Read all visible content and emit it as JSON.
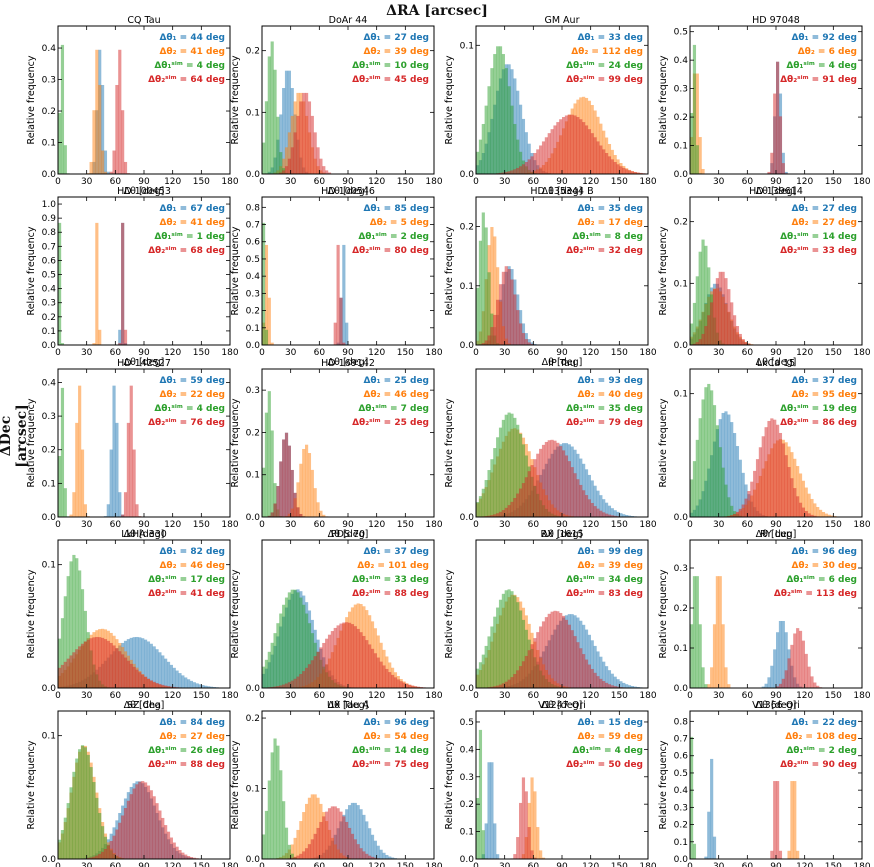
{
  "title": "ΔRA [arcsec]",
  "ylabel_side": "ΔDec [arcsec]",
  "chart_data": [
    {
      "type": "histogram",
      "title": "CQ Tau",
      "xlabel": "Δθ [deg]",
      "ylabel": "Relative frequency",
      "xlim": [
        0,
        180
      ],
      "ylim": [
        0,
        0.47
      ],
      "yticks": [
        0.0,
        0.1,
        0.2,
        0.3,
        0.4
      ],
      "series": [
        {
          "name": "Δθ₁ = 44 deg",
          "value": 44,
          "sigma": 3,
          "color": "#1f77b4"
        },
        {
          "name": "Δθ₂ = 41 deg",
          "value": 41,
          "sigma": 3,
          "color": "#ff7f0e"
        },
        {
          "name": "Δθ₁ˢⁱᵐ = 4 deg",
          "value": 4,
          "sigma": 2,
          "color": "#2ca02c"
        },
        {
          "name": "Δθ₂ˢⁱᵐ = 64 deg",
          "value": 64,
          "sigma": 3,
          "color": "#d62728"
        }
      ]
    },
    {
      "type": "histogram",
      "title": "DoAr 44",
      "xlabel": "Δθ [deg]",
      "ylabel": "Relative frequency",
      "xlim": [
        0,
        180
      ],
      "ylim": [
        0,
        0.24
      ],
      "yticks": [
        0.0,
        0.1,
        0.2
      ],
      "series": [
        {
          "name": "Δθ₁ = 27 deg",
          "value": 27,
          "sigma": 7,
          "color": "#1f77b4"
        },
        {
          "name": "Δθ₂ = 39 deg",
          "value": 39,
          "sigma": 9,
          "color": "#ff7f0e"
        },
        {
          "name": "Δθ₁ˢⁱᵐ = 10 deg",
          "value": 10,
          "sigma": 5,
          "color": "#2ca02c"
        },
        {
          "name": "Δθ₂ˢⁱᵐ = 45 deg",
          "value": 45,
          "sigma": 9,
          "color": "#d62728"
        }
      ]
    },
    {
      "type": "histogram",
      "title": "GM Aur",
      "xlabel": "Δθ [deg]",
      "ylabel": "Relative frequency",
      "xlim": [
        0,
        180
      ],
      "ylim": [
        0,
        0.115
      ],
      "yticks": [
        0.0,
        0.1
      ],
      "series": [
        {
          "name": "Δθ₁ = 33 deg",
          "value": 33,
          "sigma": 14,
          "color": "#1f77b4"
        },
        {
          "name": "Δθ₂ = 112 deg",
          "value": 112,
          "sigma": 20,
          "color": "#ff7f0e"
        },
        {
          "name": "Δθ₁ˢⁱᵐ = 24 deg",
          "value": 24,
          "sigma": 12,
          "color": "#2ca02c"
        },
        {
          "name": "Δθ₂ˢⁱᵐ = 99 deg",
          "value": 99,
          "sigma": 26,
          "color": "#d62728"
        }
      ]
    },
    {
      "type": "histogram",
      "title": "HD 97048",
      "xlabel": "Δθ [deg]",
      "ylabel": "Relative frequency",
      "xlim": [
        0,
        180
      ],
      "ylim": [
        0,
        0.52
      ],
      "yticks": [
        0.0,
        0.1,
        0.2,
        0.3,
        0.4,
        0.5
      ],
      "series": [
        {
          "name": "Δθ₁ = 92 deg",
          "value": 92,
          "sigma": 3,
          "color": "#1f77b4"
        },
        {
          "name": "Δθ₂ = 6 deg",
          "value": 6,
          "sigma": 3,
          "color": "#ff7f0e"
        },
        {
          "name": "Δθ₁ˢⁱᵐ = 4 deg",
          "value": 4,
          "sigma": 2,
          "color": "#2ca02c"
        },
        {
          "name": "Δθ₂ˢⁱᵐ = 91 deg",
          "value": 91,
          "sigma": 3,
          "color": "#d62728"
        }
      ]
    },
    {
      "type": "histogram",
      "title": "HD 100453",
      "xlabel": "Δθ [deg]",
      "ylabel": "Relative frequency",
      "xlim": [
        0,
        180
      ],
      "ylim": [
        0,
        1.05
      ],
      "yticks": [
        0.0,
        0.1,
        0.2,
        0.3,
        0.4,
        0.5,
        0.6,
        0.7,
        0.8,
        0.9,
        1.0
      ],
      "series": [
        {
          "name": "Δθ₁ = 67 deg",
          "value": 67,
          "sigma": 1,
          "color": "#1f77b4"
        },
        {
          "name": "Δθ₂ = 41 deg",
          "value": 41,
          "sigma": 1,
          "color": "#ff7f0e"
        },
        {
          "name": "Δθ₁ˢⁱᵐ = 1 deg",
          "value": 1,
          "sigma": 1,
          "color": "#2ca02c"
        },
        {
          "name": "Δθ₂ˢⁱᵐ = 68 deg",
          "value": 68,
          "sigma": 1,
          "color": "#d62728"
        }
      ]
    },
    {
      "type": "histogram",
      "title": "HD 100546",
      "xlabel": "Δθ [deg]",
      "ylabel": "Relative frequency",
      "xlim": [
        0,
        180
      ],
      "ylim": [
        0,
        0.86
      ],
      "yticks": [
        0.0,
        0.1,
        0.2,
        0.3,
        0.4,
        0.5,
        0.6,
        0.7,
        0.8
      ],
      "series": [
        {
          "name": "Δθ₁ = 85 deg",
          "value": 85,
          "sigma": 2,
          "color": "#1f77b4"
        },
        {
          "name": "Δθ₂ = 5 deg",
          "value": 5,
          "sigma": 2,
          "color": "#ff7f0e"
        },
        {
          "name": "Δθ₁ˢⁱᵐ = 2 deg",
          "value": 2,
          "sigma": 1,
          "color": "#2ca02c"
        },
        {
          "name": "Δθ₂ˢⁱᵐ = 80 deg",
          "value": 80,
          "sigma": 2,
          "color": "#d62728"
        }
      ]
    },
    {
      "type": "histogram",
      "title": "HD 135344 B",
      "xlabel": "Δθ [deg]",
      "ylabel": "Relative frequency",
      "xlim": [
        0,
        180
      ],
      "ylim": [
        0,
        0.25
      ],
      "yticks": [
        0.0,
        0.1,
        0.2
      ],
      "series": [
        {
          "name": "Δθ₁ = 35 deg",
          "value": 35,
          "sigma": 9,
          "color": "#1f77b4"
        },
        {
          "name": "Δθ₂ = 17 deg",
          "value": 17,
          "sigma": 6,
          "color": "#ff7f0e"
        },
        {
          "name": "Δθ₁ˢⁱᵐ = 8 deg",
          "value": 8,
          "sigma": 5,
          "color": "#2ca02c"
        },
        {
          "name": "Δθ₂ˢⁱᵐ = 32 deg",
          "value": 32,
          "sigma": 9,
          "color": "#d62728"
        }
      ]
    },
    {
      "type": "histogram",
      "title": "HD 139614",
      "xlabel": "Δθ [deg]",
      "ylabel": "Relative frequency",
      "xlim": [
        0,
        180
      ],
      "ylim": [
        0,
        0.24
      ],
      "yticks": [
        0.0,
        0.1,
        0.2
      ],
      "series": [
        {
          "name": "Δθ₁ = 27 deg",
          "value": 27,
          "sigma": 12,
          "color": "#1f77b4"
        },
        {
          "name": "Δθ₂ = 27 deg",
          "value": 27,
          "sigma": 13,
          "color": "#ff7f0e"
        },
        {
          "name": "Δθ₁ˢⁱᵐ = 14 deg",
          "value": 14,
          "sigma": 7,
          "color": "#2ca02c"
        },
        {
          "name": "Δθ₂ˢⁱᵐ = 33 deg",
          "value": 33,
          "sigma": 10,
          "color": "#d62728"
        }
      ]
    },
    {
      "type": "histogram",
      "title": "HD 142527",
      "xlabel": "Δθ [deg]",
      "ylabel": "Relative frequency",
      "xlim": [
        0,
        180
      ],
      "ylim": [
        0,
        0.44
      ],
      "yticks": [
        0.0,
        0.1,
        0.2,
        0.3,
        0.4
      ],
      "series": [
        {
          "name": "Δθ₁ = 59 deg",
          "value": 59,
          "sigma": 3,
          "color": "#1f77b4"
        },
        {
          "name": "Δθ₂ = 22 deg",
          "value": 22,
          "sigma": 3,
          "color": "#ff7f0e"
        },
        {
          "name": "Δθ₁ˢⁱᵐ = 4 deg",
          "value": 4,
          "sigma": 2,
          "color": "#2ca02c"
        },
        {
          "name": "Δθ₂ˢⁱᵐ = 76 deg",
          "value": 76,
          "sigma": 3,
          "color": "#d62728"
        }
      ]
    },
    {
      "type": "histogram",
      "title": "HD 169142",
      "xlabel": "Δθ [deg]",
      "ylabel": "Relative frequency",
      "xlim": [
        0,
        180
      ],
      "ylim": [
        0,
        0.35
      ],
      "yticks": [
        0.0,
        0.1,
        0.2,
        0.3
      ],
      "series": [
        {
          "name": "Δθ₁ = 25 deg",
          "value": 25,
          "sigma": 6,
          "color": "#1f77b4"
        },
        {
          "name": "Δθ₂ = 46 deg",
          "value": 46,
          "sigma": 7,
          "color": "#ff7f0e"
        },
        {
          "name": "Δθ₁ˢⁱᵐ = 7 deg",
          "value": 7,
          "sigma": 4,
          "color": "#2ca02c"
        },
        {
          "name": "Δθ₂ˢⁱᵐ = 25 deg",
          "value": 25,
          "sigma": 6,
          "color": "#d62728"
        }
      ]
    },
    {
      "type": "histogram",
      "title": "IP Tau",
      "xlabel": "Δθ [deg]",
      "ylabel": "Relative frequency",
      "xlim": [
        0,
        180
      ],
      "ylim": [
        0,
        0.1
      ],
      "yticks": [
        0.0
      ],
      "series": [
        {
          "name": "Δθ₁ = 93 deg",
          "value": 93,
          "sigma": 24,
          "color": "#1f77b4"
        },
        {
          "name": "Δθ₂ = 40 deg",
          "value": 40,
          "sigma": 20,
          "color": "#ff7f0e"
        },
        {
          "name": "Δθ₁ˢⁱᵐ = 35 deg",
          "value": 35,
          "sigma": 17,
          "color": "#2ca02c"
        },
        {
          "name": "Δθ₂ˢⁱᵐ = 79 deg",
          "value": 79,
          "sigma": 23,
          "color": "#d62728"
        }
      ]
    },
    {
      "type": "histogram",
      "title": "LkCa 15",
      "xlabel": "Δθ [deg]",
      "ylabel": "Relative frequency",
      "xlim": [
        0,
        180
      ],
      "ylim": [
        0,
        0.12
      ],
      "yticks": [
        0.0,
        0.1
      ],
      "series": [
        {
          "name": "Δθ₁ = 37 deg",
          "value": 37,
          "sigma": 14,
          "color": "#1f77b4"
        },
        {
          "name": "Δθ₂ = 95 deg",
          "value": 95,
          "sigma": 19,
          "color": "#ff7f0e"
        },
        {
          "name": "Δθ₁ˢⁱᵐ = 19 deg",
          "value": 19,
          "sigma": 11,
          "color": "#2ca02c"
        },
        {
          "name": "Δθ₂ˢⁱᵐ = 86 deg",
          "value": 86,
          "sigma": 15,
          "color": "#d62728"
        }
      ]
    },
    {
      "type": "histogram",
      "title": "LkHA 330",
      "xlabel": "Δθ [deg]",
      "ylabel": "Relative frequency",
      "xlim": [
        0,
        180
      ],
      "ylim": [
        0,
        0.12
      ],
      "yticks": [
        0.0,
        0.1
      ],
      "series": [
        {
          "name": "Δθ₁ = 82 deg",
          "value": 82,
          "sigma": 29,
          "color": "#1f77b4"
        },
        {
          "name": "Δθ₂ = 46 deg",
          "value": 46,
          "sigma": 25,
          "color": "#ff7f0e"
        },
        {
          "name": "Δθ₁ˢⁱᵐ = 17 deg",
          "value": 17,
          "sigma": 11,
          "color": "#2ca02c"
        },
        {
          "name": "Δθ₂ˢⁱᵐ = 41 deg",
          "value": 41,
          "sigma": 29,
          "color": "#d62728"
        }
      ]
    },
    {
      "type": "histogram",
      "title": "PDS 70",
      "xlabel": "Δθ [deg]",
      "ylabel": "Relative frequency",
      "xlim": [
        0,
        180
      ],
      "ylim": [
        0,
        0.1
      ],
      "yticks": [
        0.0
      ],
      "series": [
        {
          "name": "Δθ₁ = 37 deg",
          "value": 37,
          "sigma": 18,
          "color": "#1f77b4"
        },
        {
          "name": "Δθ₂ = 101 deg",
          "value": 101,
          "sigma": 21,
          "color": "#ff7f0e"
        },
        {
          "name": "Δθ₁ˢⁱᵐ = 33 deg",
          "value": 33,
          "sigma": 18,
          "color": "#2ca02c"
        },
        {
          "name": "Δθ₂ˢⁱᵐ = 88 deg",
          "value": 88,
          "sigma": 27,
          "color": "#d62728"
        }
      ]
    },
    {
      "type": "histogram",
      "title": "RX J1615",
      "xlabel": "Δθ [deg]",
      "ylabel": "Relative frequency",
      "xlim": [
        0,
        180
      ],
      "ylim": [
        0,
        0.1
      ],
      "yticks": [
        0.0
      ],
      "series": [
        {
          "name": "Δθ₁ = 99 deg",
          "value": 99,
          "sigma": 24,
          "color": "#1f77b4"
        },
        {
          "name": "Δθ₂ = 39 deg",
          "value": 39,
          "sigma": 19,
          "color": "#ff7f0e"
        },
        {
          "name": "Δθ₁ˢⁱᵐ = 34 deg",
          "value": 34,
          "sigma": 18,
          "color": "#2ca02c"
        },
        {
          "name": "Δθ₂ˢⁱᵐ = 83 deg",
          "value": 83,
          "sigma": 23,
          "color": "#d62728"
        }
      ]
    },
    {
      "type": "histogram",
      "title": "RY Lup",
      "xlabel": "Δθ [deg]",
      "ylabel": "Relative frequency",
      "xlim": [
        0,
        180
      ],
      "ylim": [
        0,
        0.37
      ],
      "yticks": [
        0.0,
        0.1,
        0.2,
        0.3
      ],
      "series": [
        {
          "name": "Δθ₁ = 96 deg",
          "value": 96,
          "sigma": 7,
          "color": "#1f77b4"
        },
        {
          "name": "Δθ₂ = 30 deg",
          "value": 30,
          "sigma": 4,
          "color": "#ff7f0e"
        },
        {
          "name": "Δθ₁ˢⁱᵐ = 6 deg",
          "value": 6,
          "sigma": 4,
          "color": "#2ca02c"
        },
        {
          "name": "Δθ₂ˢⁱᵐ = 113 deg",
          "value": 113,
          "sigma": 8,
          "color": "#d62728"
        }
      ]
    },
    {
      "type": "histogram",
      "title": "SZ Cha",
      "xlabel": "Δθ [deg]",
      "ylabel": "Relative frequency",
      "xlim": [
        0,
        180
      ],
      "ylim": [
        0,
        0.12
      ],
      "yticks": [
        0.0,
        0.1
      ],
      "series": [
        {
          "name": "Δθ₁ = 84 deg",
          "value": 84,
          "sigma": 19,
          "color": "#1f77b4"
        },
        {
          "name": "Δθ₂ = 27 deg",
          "value": 27,
          "sigma": 13,
          "color": "#ff7f0e"
        },
        {
          "name": "Δθ₁ˢⁱᵐ = 26 deg",
          "value": 26,
          "sigma": 13,
          "color": "#2ca02c"
        },
        {
          "name": "Δθ₂ˢⁱᵐ = 88 deg",
          "value": 88,
          "sigma": 19,
          "color": "#d62728"
        }
      ]
    },
    {
      "type": "histogram",
      "title": "UX Tau A",
      "xlabel": "Δθ [deg]",
      "ylabel": "Relative frequency",
      "xlim": [
        0,
        180
      ],
      "ylim": [
        0,
        0.21
      ],
      "yticks": [
        0.0,
        0.1,
        0.2
      ],
      "series": [
        {
          "name": "Δθ₁ = 96 deg",
          "value": 96,
          "sigma": 15,
          "color": "#1f77b4"
        },
        {
          "name": "Δθ₂ = 54 deg",
          "value": 54,
          "sigma": 13,
          "color": "#ff7f0e"
        },
        {
          "name": "Δθ₁ˢⁱᵐ = 14 deg",
          "value": 14,
          "sigma": 7,
          "color": "#2ca02c"
        },
        {
          "name": "Δθ₂ˢⁱᵐ = 75 deg",
          "value": 75,
          "sigma": 16,
          "color": "#d62728"
        }
      ]
    },
    {
      "type": "histogram",
      "title": "V1247 Ori",
      "xlabel": "Δθ [deg]",
      "ylabel": "Relative frequency",
      "xlim": [
        0,
        180
      ],
      "ylim": [
        0,
        0.54
      ],
      "yticks": [
        0.0,
        0.1,
        0.2,
        0.3,
        0.4,
        0.5
      ],
      "series": [
        {
          "name": "Δθ₁ = 15 deg",
          "value": 15,
          "sigma": 3,
          "color": "#1f77b4"
        },
        {
          "name": "Δθ₂ = 59 deg",
          "value": 59,
          "sigma": 4,
          "color": "#ff7f0e"
        },
        {
          "name": "Δθ₁ˢⁱᵐ = 4 deg",
          "value": 4,
          "sigma": 2,
          "color": "#2ca02c"
        },
        {
          "name": "Δθ₂ˢⁱᵐ = 50 deg",
          "value": 50,
          "sigma": 4,
          "color": "#d62728"
        }
      ]
    },
    {
      "type": "histogram",
      "title": "V1366 Ori",
      "xlabel": "Δθ [deg]",
      "ylabel": "Relative frequency",
      "xlim": [
        0,
        180
      ],
      "ylim": [
        0,
        0.86
      ],
      "yticks": [
        0.0,
        0.1,
        0.2,
        0.3,
        0.4,
        0.5,
        0.6,
        0.7,
        0.8
      ],
      "series": [
        {
          "name": "Δθ₁ = 22 deg",
          "value": 22,
          "sigma": 2,
          "color": "#1f77b4"
        },
        {
          "name": "Δθ₂ = 108 deg",
          "value": 108,
          "sigma": 2,
          "color": "#ff7f0e"
        },
        {
          "name": "Δθ₁ˢⁱᵐ = 2 deg",
          "value": 2,
          "sigma": 1,
          "color": "#2ca02c"
        },
        {
          "name": "Δθ₂ˢⁱᵐ = 90 deg",
          "value": 90,
          "sigma": 2,
          "color": "#d62728"
        }
      ]
    }
  ]
}
